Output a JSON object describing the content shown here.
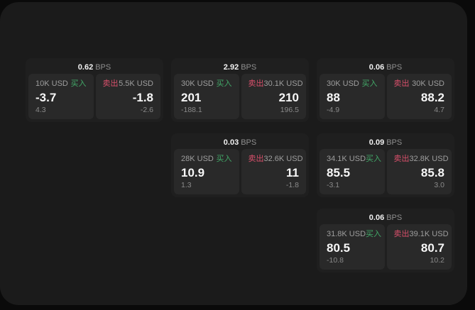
{
  "colors": {
    "buy_green": "#42a868",
    "sell_red": "#d9506b",
    "panel_bg": "#1b1b1b",
    "card_bg": "#1f1f1f",
    "tile_bg": "#292929"
  },
  "labels": {
    "buy": "买入",
    "sell": "卖出",
    "bps_unit": "BPS"
  },
  "cards": [
    {
      "bps": "0.62",
      "unit": "BPS",
      "buy": {
        "size": "10K USD",
        "action": "买入",
        "price": "-3.7",
        "delta": "4.3"
      },
      "sell": {
        "size": "5.5K USD",
        "action": "卖出",
        "price": "-1.8",
        "delta": "-2.6"
      }
    },
    {
      "bps": "2.92",
      "unit": "BPS",
      "buy": {
        "size": "30K USD",
        "action": "买入",
        "price": "201",
        "delta": "-188.1"
      },
      "sell": {
        "size": "30.1K USD",
        "action": "卖出",
        "price": "210",
        "delta": "196.5"
      }
    },
    {
      "bps": "0.06",
      "unit": "BPS",
      "buy": {
        "size": "30K USD",
        "action": "买入",
        "price": "88",
        "delta": "-4.9"
      },
      "sell": {
        "size": "30K USD",
        "action": "卖出",
        "price": "88.2",
        "delta": "4.7"
      }
    },
    {
      "bps": "0.03",
      "unit": "BPS",
      "buy": {
        "size": "28K USD",
        "action": "买入",
        "price": "10.9",
        "delta": "1.3"
      },
      "sell": {
        "size": "32.6K USD",
        "action": "卖出",
        "price": "11",
        "delta": "-1.8"
      }
    },
    {
      "bps": "0.09",
      "unit": "BPS",
      "buy": {
        "size": "34.1K USD",
        "action": "买入",
        "price": "85.5",
        "delta": "-3.1"
      },
      "sell": {
        "size": "32.8K USD",
        "action": "卖出",
        "price": "85.8",
        "delta": "3.0"
      }
    },
    {
      "bps": "0.06",
      "unit": "BPS",
      "buy": {
        "size": "31.8K USD",
        "action": "买入",
        "price": "80.5",
        "delta": "-10.8"
      },
      "sell": {
        "size": "39.1K USD",
        "action": "卖出",
        "price": "80.7",
        "delta": "10.2"
      }
    }
  ]
}
